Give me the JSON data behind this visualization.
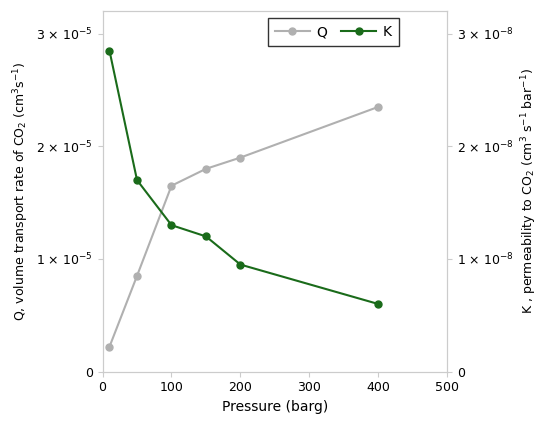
{
  "pressure": [
    10,
    50,
    100,
    150,
    200,
    400
  ],
  "Q_values": [
    2.2e-06,
    8.5e-06,
    1.65e-05,
    1.8e-05,
    1.9e-05,
    2.35e-05
  ],
  "K_values": [
    2.85e-08,
    1.7e-08,
    1.3e-08,
    1.2e-08,
    9.5e-09,
    6e-09
  ],
  "Q_color": "#b0b0b0",
  "K_color": "#1a6b1a",
  "xlabel": "Pressure (barg)",
  "ylabel_left": "Q, volume transport rate of CO$_2$ (cm$^3$s$^{-1}$)",
  "ylabel_right": "K , permeability to CO$_2$ (cm$^3$ s$^{-1}$ bar$^{-1}$)",
  "xlim": [
    0,
    500
  ],
  "ylim_left": [
    0,
    3.2e-05
  ],
  "ylim_right": [
    0,
    3.2e-08
  ],
  "yticks_left": [
    0,
    1e-05,
    2e-05,
    3e-05
  ],
  "ytick_labels_left": [
    "0",
    "1 × 10$^{-5}$",
    "2 × 10$^{-5}$",
    "3 × 10$^{-5}$"
  ],
  "yticks_right": [
    0,
    1e-08,
    2e-08,
    3e-08
  ],
  "ytick_labels_right": [
    "0",
    "1 × 10$^{-8}$",
    "2 × 10$^{-8}$",
    "3 × 10$^{-8}$"
  ],
  "xticks": [
    0,
    100,
    200,
    300,
    400,
    500
  ],
  "legend_Q": "Q",
  "legend_K": "K",
  "background_color": "#ffffff",
  "spine_color": "#cccccc",
  "tick_color": "#aaaaaa"
}
